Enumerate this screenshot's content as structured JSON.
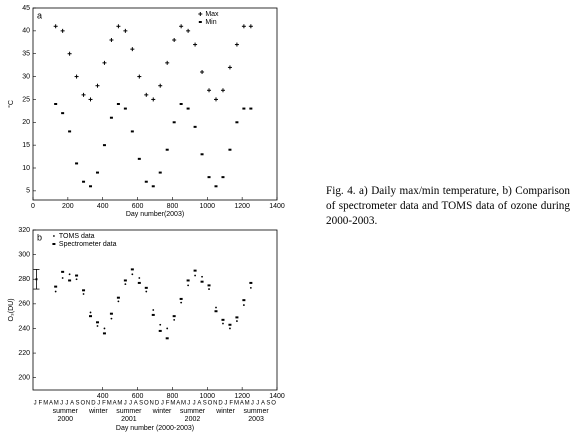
{
  "caption": "Fig. 4. a) Daily max/min temperature, b) Comparison of spectrometer data and TOMS data of ozone during 2000-2003.",
  "chart_data": [
    {
      "type": "scatter",
      "panel_label": "a",
      "x_label": "Day number(2003)",
      "y_label": "°C",
      "xlim": [
        0,
        1400
      ],
      "xticks": [
        0,
        200,
        400,
        600,
        800,
        1000,
        1200,
        1400
      ],
      "ylim": [
        3,
        45
      ],
      "yticks": [
        5,
        10,
        15,
        20,
        25,
        30,
        35,
        40,
        45
      ],
      "x": [
        130,
        170,
        210,
        250,
        290,
        330,
        370,
        410,
        450,
        490,
        530,
        570,
        610,
        650,
        690,
        730,
        770,
        810,
        850,
        890,
        930,
        970,
        1010,
        1050,
        1090,
        1130,
        1170,
        1210,
        1250
      ],
      "series": [
        {
          "name": "Max",
          "color": "#000000",
          "marker": "plus",
          "values": [
            41,
            40,
            35,
            30,
            26,
            25,
            28,
            33,
            38,
            41,
            40,
            36,
            30,
            26,
            25,
            28,
            33,
            38,
            41,
            40,
            37,
            31,
            27,
            25,
            27,
            32,
            37,
            41,
            41
          ]
        },
        {
          "name": "Min",
          "color": "#000000",
          "marker": "square",
          "values": [
            24,
            22,
            18,
            11,
            7,
            6,
            9,
            15,
            21,
            24,
            23,
            18,
            12,
            7,
            6,
            9,
            14,
            20,
            24,
            23,
            19,
            13,
            8,
            6,
            8,
            14,
            20,
            23,
            23
          ]
        }
      ],
      "legend": "top-right"
    },
    {
      "type": "scatter",
      "panel_label": "b",
      "x_label": "Day number (2000-2003)",
      "y_label": "O₃(DU)",
      "xlim": [
        0,
        1400
      ],
      "xticks": [
        400,
        600,
        800,
        1000,
        1200,
        1400
      ],
      "ylim": [
        190,
        320
      ],
      "yticks": [
        200,
        220,
        240,
        260,
        280,
        300,
        320
      ],
      "x": [
        130,
        170,
        210,
        250,
        290,
        330,
        370,
        410,
        450,
        490,
        530,
        570,
        610,
        650,
        690,
        730,
        770,
        810,
        850,
        890,
        930,
        970,
        1010,
        1050,
        1090,
        1130,
        1170,
        1210,
        1250
      ],
      "series": [
        {
          "name": "TOMS data",
          "color": "#000000",
          "marker": "dot",
          "values": [
            270,
            281,
            284,
            280,
            268,
            253,
            242,
            240,
            248,
            262,
            276,
            284,
            281,
            270,
            255,
            243,
            240,
            247,
            261,
            275,
            283,
            282,
            272,
            257,
            244,
            240,
            246,
            259,
            273
          ]
        },
        {
          "name": "Spectrometer data",
          "color": "#000000",
          "marker": "square",
          "values": [
            274,
            286,
            279,
            283,
            271,
            250,
            245,
            236,
            252,
            265,
            279,
            288,
            277,
            273,
            251,
            238,
            232,
            250,
            264,
            279,
            287,
            278,
            275,
            254,
            247,
            243,
            249,
            263,
            277
          ]
        }
      ],
      "error_bar": {
        "x": 20,
        "value": 280,
        "error": 8
      },
      "legend": "top-left",
      "month_labels": [
        "J",
        "F",
        "M",
        "A",
        "M",
        "J",
        "J",
        "A",
        "S",
        "O",
        "N",
        "D",
        "J",
        "F",
        "M",
        "A",
        "M",
        "J",
        "J",
        "A",
        "S",
        "O",
        "N",
        "D",
        "J",
        "F",
        "M",
        "A",
        "M",
        "J",
        "J",
        "A",
        "S",
        "O",
        "N",
        "D",
        "J",
        "F",
        "M",
        "A",
        "M",
        "J",
        "J",
        "A",
        "S",
        "O"
      ],
      "seasons": [
        {
          "label": "summer",
          "year": "2000"
        },
        {
          "label": "winter"
        },
        {
          "label": "summer",
          "year": "2001"
        },
        {
          "label": "winter"
        },
        {
          "label": "summer",
          "year": "2002"
        },
        {
          "label": "winter"
        },
        {
          "label": "summer",
          "year": "2003"
        }
      ]
    }
  ]
}
